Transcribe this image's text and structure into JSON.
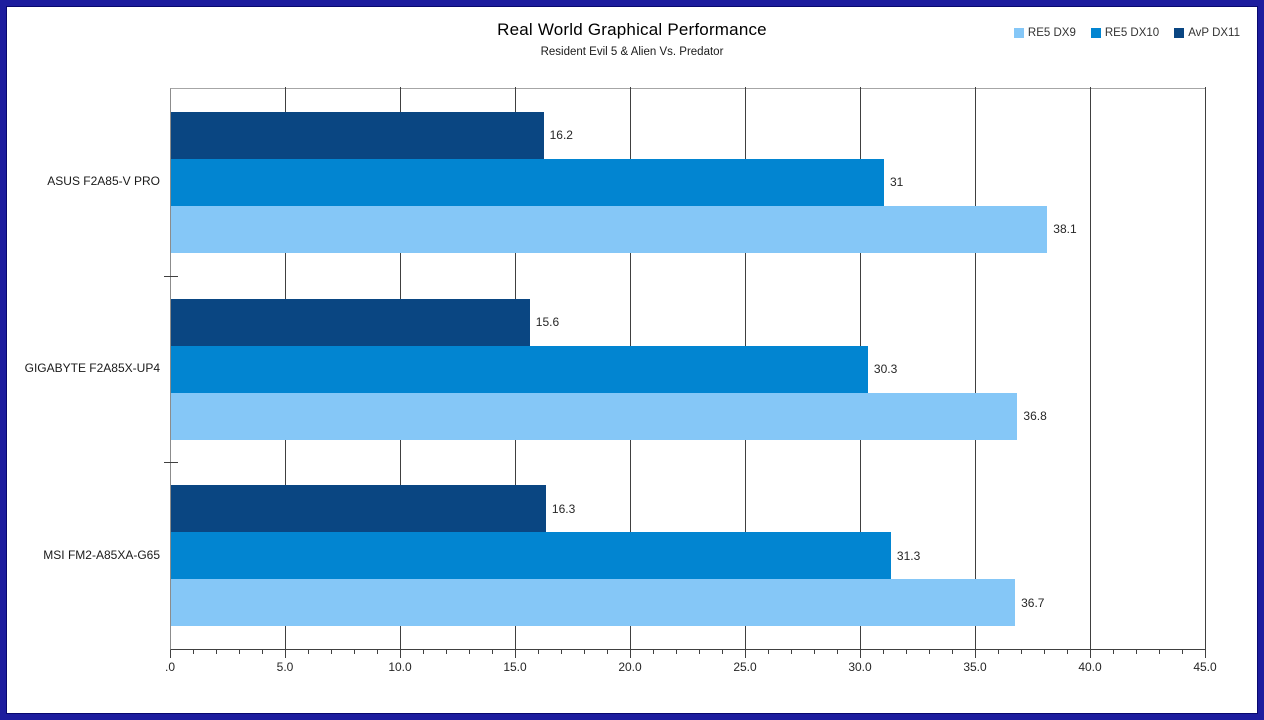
{
  "frame": {
    "border_color": "#1d1d9e",
    "background": "#ffffff"
  },
  "chart_data": {
    "type": "bar",
    "orientation": "horizontal",
    "title": "Real World Graphical Performance",
    "subtitle": "Resident Evil 5 & Alien Vs. Predator",
    "categories": [
      "ASUS F2A85-V PRO",
      "GIGABYTE F2A85X-UP4",
      "MSI FM2-A85XA-G65"
    ],
    "series": [
      {
        "name": "RE5 DX9",
        "color": "#85C7F7",
        "values": [
          38.1,
          36.8,
          36.7
        ]
      },
      {
        "name": "RE5 DX10",
        "color": "#0285D1",
        "values": [
          31,
          30.3,
          31.3
        ]
      },
      {
        "name": "AvP DX11",
        "color": "#0A4682",
        "values": [
          16.2,
          15.6,
          16.3
        ]
      }
    ],
    "series_render_order": "reversed-within-group",
    "xlim": [
      0,
      45
    ],
    "xticks": [
      0,
      5,
      10,
      15,
      20,
      25,
      30,
      35,
      40,
      45
    ],
    "xtick_labels": [
      ".0",
      "5.0",
      "10.0",
      "15.0",
      "20.0",
      "25.0",
      "30.0",
      "35.0",
      "40.0",
      "45.0"
    ],
    "minor_tick_step": 1,
    "grid": "vertical-major",
    "legend_position": "top-right",
    "axis_colors": {
      "grid": "#404040",
      "axis_top": "#a6a6a6",
      "axis_left": "#8c8c8c",
      "axis_bottom": "#404040",
      "text": "#262626"
    }
  }
}
